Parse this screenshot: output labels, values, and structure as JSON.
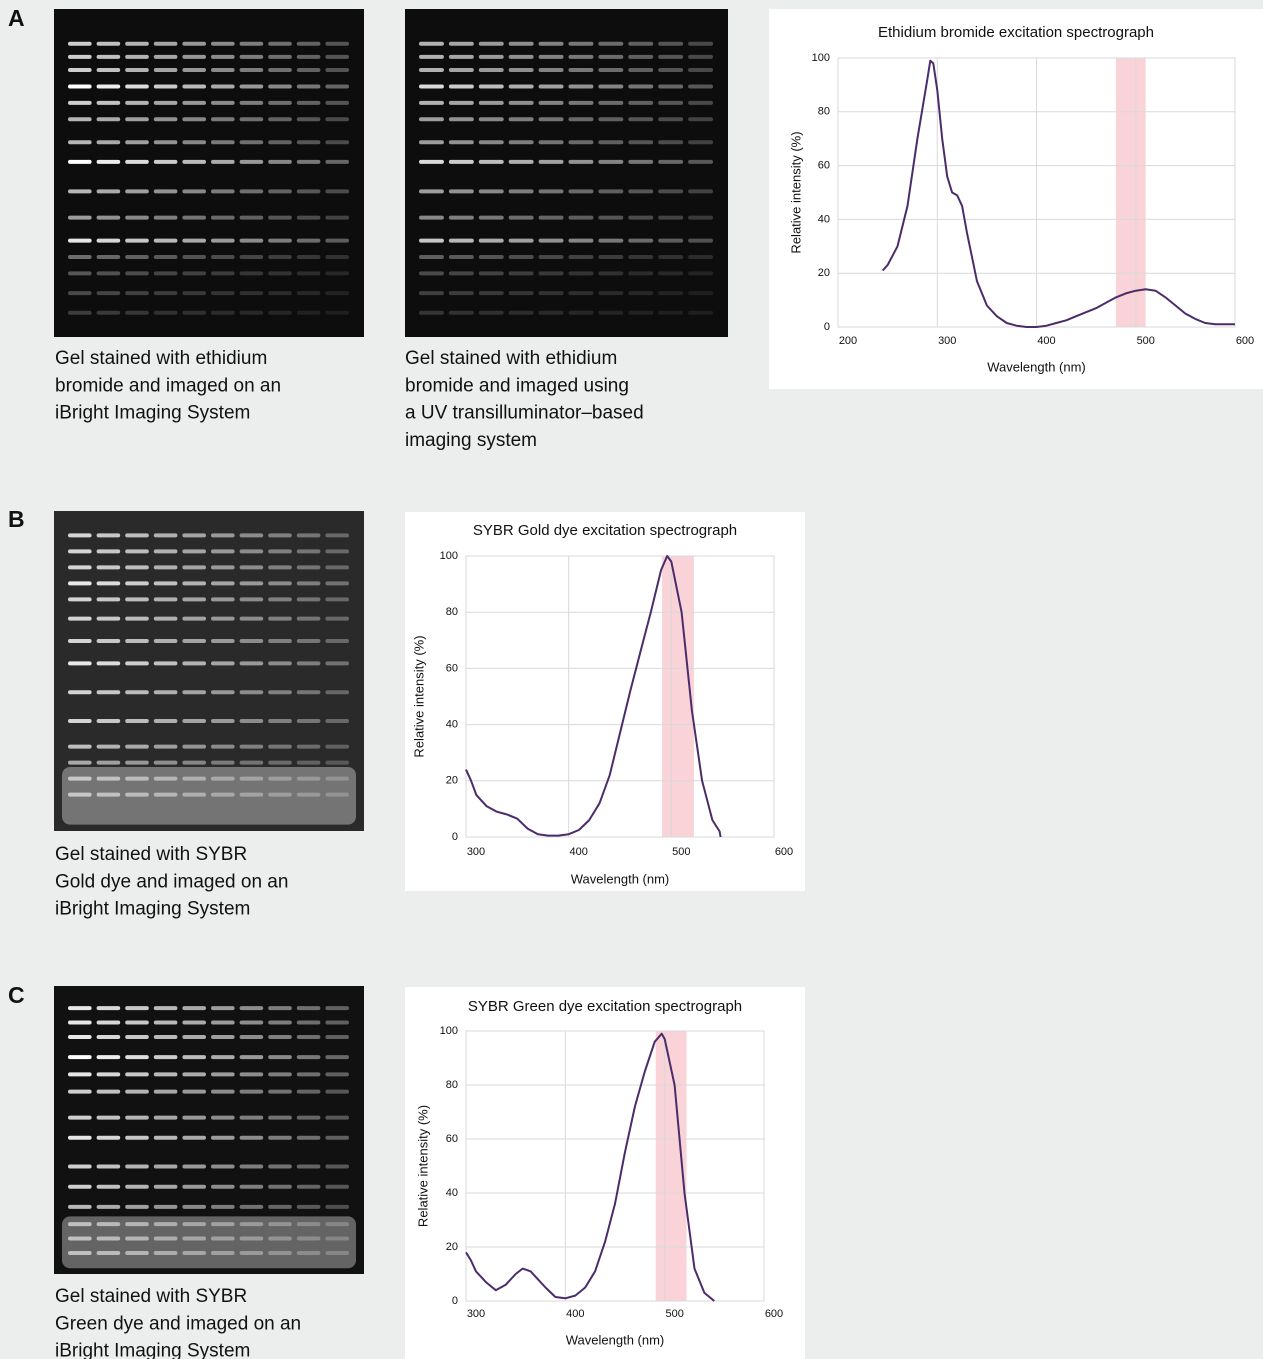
{
  "panels": [
    {
      "label": "A",
      "captions": [
        [
          "Gel stained with ethidium",
          "bromide and imaged on an",
          "iBright Imaging System"
        ],
        [
          "Gel stained with ethidium",
          "bromide and imaged using",
          "a UV transilluminator–based",
          "imaging system"
        ]
      ]
    },
    {
      "label": "B",
      "captions": [
        [
          "Gel stained with SYBR",
          "Gold dye and imaged on an",
          "iBright Imaging System"
        ]
      ]
    },
    {
      "label": "C",
      "captions": [
        [
          "Gel stained with SYBR",
          "Green dye and imaged on an",
          "iBright Imaging System"
        ]
      ]
    }
  ],
  "chart_data": [
    {
      "type": "line",
      "title": "Ethidium bromide excitation spectrograph",
      "x_label": "Wavelength (nm)",
      "y_label": "Relative intensity (%)",
      "x": [
        245,
        250,
        260,
        270,
        280,
        290,
        293,
        296,
        300,
        305,
        310,
        315,
        320,
        325,
        330,
        340,
        350,
        360,
        370,
        380,
        390,
        400,
        410,
        420,
        430,
        440,
        450,
        460,
        470,
        480,
        490,
        500,
        510,
        520,
        530,
        540,
        550,
        560,
        570,
        580,
        590,
        600
      ],
      "values": [
        21,
        23,
        30,
        45,
        70,
        92,
        99,
        98,
        88,
        70,
        56,
        50,
        49,
        45,
        35,
        17,
        8,
        4,
        1.5,
        0.5,
        0,
        0,
        0.5,
        1.5,
        2.5,
        4,
        5.5,
        7,
        9,
        11,
        12.5,
        13.5,
        14,
        13.5,
        11,
        8,
        5,
        3,
        1.5,
        1,
        1,
        1
      ],
      "color": "#4b2c6b",
      "highlight": [
        480,
        510
      ],
      "highlight_color": "#f9d3d8",
      "xlim": [
        200,
        600
      ],
      "xticks": [
        200,
        300,
        400,
        500,
        600
      ],
      "ylim": [
        0,
        100
      ],
      "yticks": [
        0,
        20,
        40,
        60,
        80,
        100
      ],
      "grid": true
    },
    {
      "type": "line",
      "title": "SYBR Gold dye excitation spectrograph",
      "x_label": "Wavelength (nm)",
      "y_label": "Relative intensity (%)",
      "x": [
        300,
        305,
        310,
        320,
        330,
        340,
        350,
        360,
        370,
        380,
        390,
        400,
        410,
        420,
        430,
        440,
        450,
        460,
        470,
        480,
        490,
        496,
        500,
        510,
        520,
        530,
        540,
        547,
        548
      ],
      "values": [
        24,
        20,
        15,
        11,
        9,
        8,
        6.5,
        3,
        1,
        0.5,
        0.5,
        1,
        2.5,
        6,
        12,
        22,
        37,
        52,
        66,
        80,
        95,
        100,
        98,
        80,
        45,
        20,
        6,
        2,
        0
      ],
      "color": "#4b2c6b",
      "highlight": [
        491,
        522
      ],
      "highlight_color": "#f9d3d8",
      "xlim": [
        300,
        600
      ],
      "xticks": [
        300,
        400,
        500,
        600
      ],
      "ylim": [
        0,
        100
      ],
      "yticks": [
        0,
        20,
        40,
        60,
        80,
        100
      ],
      "grid": true
    },
    {
      "type": "line",
      "title": "SYBR Green dye excitation spectrograph",
      "x_label": "Wavelength (nm)",
      "y_label": "Relative intensity (%)",
      "x": [
        300,
        305,
        310,
        320,
        330,
        340,
        350,
        357,
        365,
        370,
        380,
        390,
        400,
        410,
        420,
        430,
        440,
        450,
        460,
        470,
        480,
        490,
        497,
        500,
        510,
        520,
        530,
        540,
        550
      ],
      "values": [
        18,
        15,
        11,
        7,
        4,
        6,
        10,
        12,
        11,
        9,
        5,
        1.5,
        1,
        2,
        5,
        11,
        22,
        36,
        55,
        72,
        85,
        96,
        99,
        97,
        80,
        40,
        12,
        3,
        0
      ],
      "color": "#4b2c6b",
      "highlight": [
        491,
        522
      ],
      "highlight_color": "#f9d3d8",
      "xlim": [
        300,
        600
      ],
      "xticks": [
        300,
        400,
        500,
        600
      ],
      "ylim": [
        0,
        100
      ],
      "yticks": [
        0,
        20,
        40,
        60,
        80,
        100
      ],
      "grid": true
    }
  ]
}
